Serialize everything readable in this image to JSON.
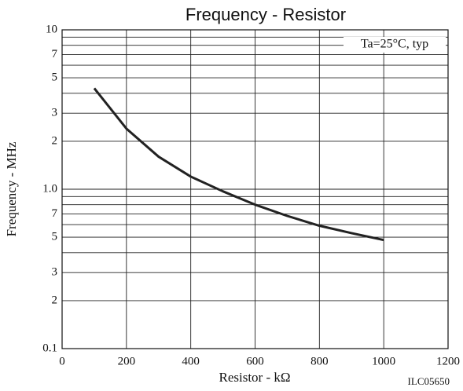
{
  "chart_data": {
    "type": "line",
    "title": "Frequency - Resistor",
    "xlabel": "Resistor - kΩ",
    "ylabel": "Frequency - MHz",
    "annotation": "Ta=25°C, typ",
    "footnote": "ILC05650",
    "x": [
      100,
      200,
      300,
      400,
      500,
      600,
      700,
      800,
      900,
      1000
    ],
    "series": [
      {
        "color": "#222222",
        "values": [
          4.3,
          2.4,
          1.6,
          1.2,
          0.97,
          0.8,
          0.68,
          0.59,
          0.53,
          0.48
        ]
      }
    ],
    "xlim": [
      0,
      1200
    ],
    "xticks": [
      0,
      200,
      400,
      600,
      800,
      1000,
      1200
    ],
    "ylim": [
      0.1,
      10
    ],
    "log_y": true,
    "yticks": [
      0.1,
      {
        "value": 0.2,
        "label": "2"
      },
      {
        "value": 0.3,
        "label": "3"
      },
      {
        "value": 0.5,
        "label": "5"
      },
      {
        "value": 0.7,
        "label": "7"
      },
      {
        "value": 1,
        "label": "1.0"
      },
      2,
      3,
      5,
      7,
      10
    ],
    "yminorticks": [
      0.4,
      0.6,
      0.8,
      0.9,
      4,
      6,
      8,
      9
    ],
    "grid": true
  }
}
